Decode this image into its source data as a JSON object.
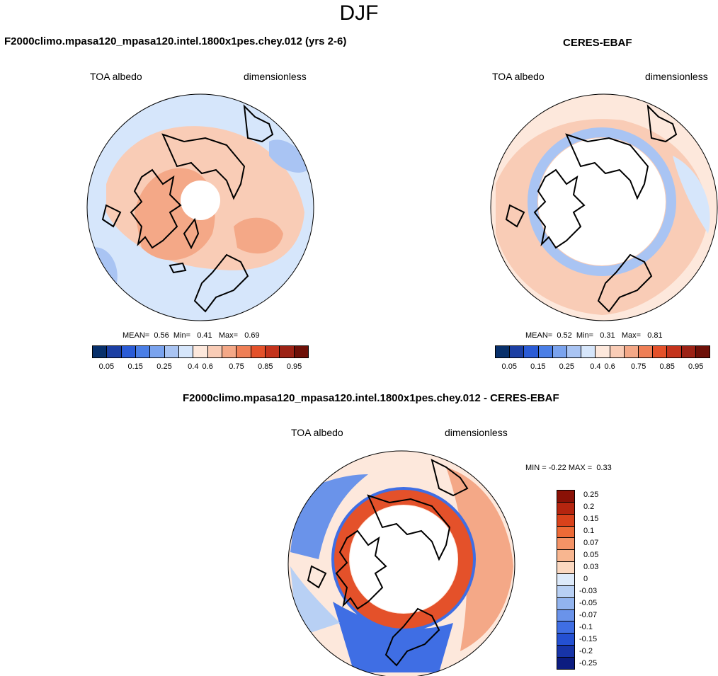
{
  "title": "DJF",
  "panels": {
    "model": {
      "header": "F2000climo.mpasa120_mpasa120.intel.1800x1pes.chey.012 (yrs 2-6)",
      "left_label": "TOA albedo",
      "right_label": "dimensionless",
      "stats": {
        "mean_label": "MEAN=",
        "mean": "0.56",
        "min_label": "Min=",
        "min": "0.41",
        "max_label": "Max=",
        "max": "0.69"
      }
    },
    "obs": {
      "header": "CERES-EBAF",
      "left_label": "TOA albedo",
      "right_label": "dimensionless",
      "stats": {
        "mean_label": "MEAN=",
        "mean": "0.52",
        "min_label": "Min=",
        "min": "0.31",
        "max_label": "Max=",
        "max": "0.81"
      }
    },
    "diff": {
      "header": "F2000climo.mpasa120_mpasa120.intel.1800x1pes.chey.012 - CERES-EBAF",
      "left_label": "TOA albedo",
      "right_label": "dimensionless",
      "stats": {
        "min_label": "MIN =",
        "min": "-0.22",
        "max_label": "MAX =",
        "max": "0.33"
      }
    }
  },
  "colorbar_main": {
    "colors": [
      "#08306b",
      "#1c3fa3",
      "#2a5bd6",
      "#4a7ee6",
      "#7aa3ee",
      "#a9c4f3",
      "#d6e6fb",
      "#fde8dc",
      "#f9ccb6",
      "#f4a887",
      "#ef7f56",
      "#e4512a",
      "#c4331c",
      "#9c2215",
      "#6e1008"
    ],
    "tick_labels": [
      "0.05",
      "0.15",
      "0.25",
      "0.4",
      "0.6",
      "0.75",
      "0.85",
      "0.95"
    ]
  },
  "colorbar_diff": {
    "colors": [
      "#8a1106",
      "#b5250f",
      "#d9421b",
      "#ed6a36",
      "#f49366",
      "#f8b690",
      "#fbd8c0",
      "#ddeafa",
      "#b8d0f4",
      "#92b4ef",
      "#6a93ea",
      "#3f6ee4",
      "#2450d2",
      "#1734a8",
      "#0c1c80"
    ],
    "labels": [
      "0.25",
      "0.2",
      "0.15",
      "0.1",
      "0.07",
      "0.05",
      "0.03",
      "0",
      "-0.03",
      "-0.05",
      "-0.07",
      "-0.1",
      "-0.15",
      "-0.2",
      "-0.25"
    ]
  },
  "map_colors": {
    "light_blue": "#d6e6fb",
    "mid_blue": "#a9c4f3",
    "peach": "#f9ccb6",
    "salmon": "#f4a887",
    "light_peach": "#fde8dc",
    "red_ring": "#e4512a",
    "blue_ring": "#2a5bd6"
  }
}
